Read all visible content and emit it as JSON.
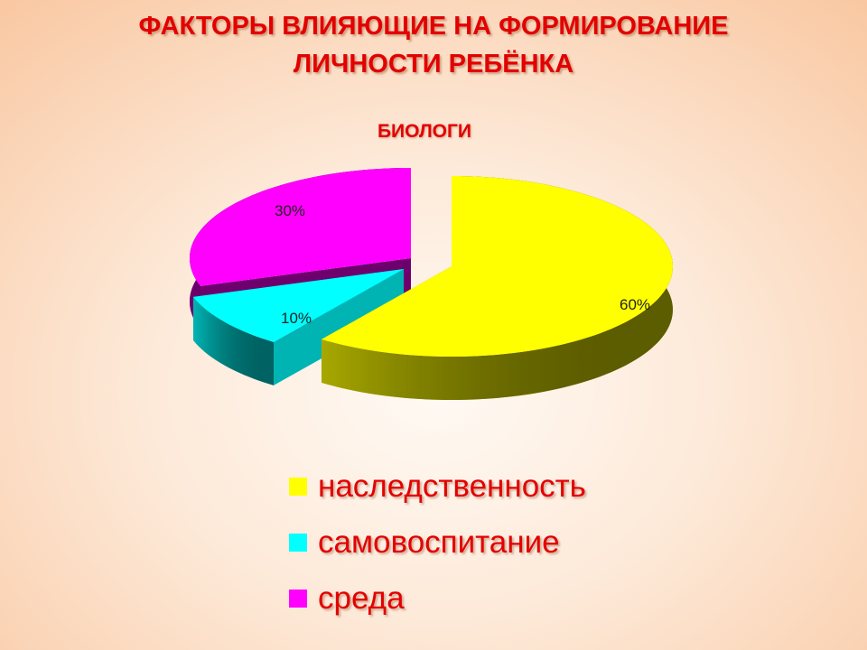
{
  "chart_data": {
    "type": "pie",
    "style": "3d-exploded",
    "title_lines": [
      "ФАКТОРЫ ВЛИЯЮЩИЕ НА ФОРМИРОВАНИЕ",
      "ЛИЧНОСТИ РЕБЁНКА"
    ],
    "subtitle": "БИОЛОГИ",
    "legend_position": "bottom",
    "slices": [
      {
        "label": "наследственность",
        "value": 60,
        "data_label": "60%",
        "color": "#ffff00",
        "side_color": "#a8a800"
      },
      {
        "label": "самовоспитание",
        "value": 10,
        "data_label": "10%",
        "color": "#00ffff",
        "side_color": "#00b4b4"
      },
      {
        "label": "среда",
        "value": 30,
        "data_label": "30%",
        "color": "#ff00ff",
        "side_color": "#6e006e"
      }
    ]
  }
}
